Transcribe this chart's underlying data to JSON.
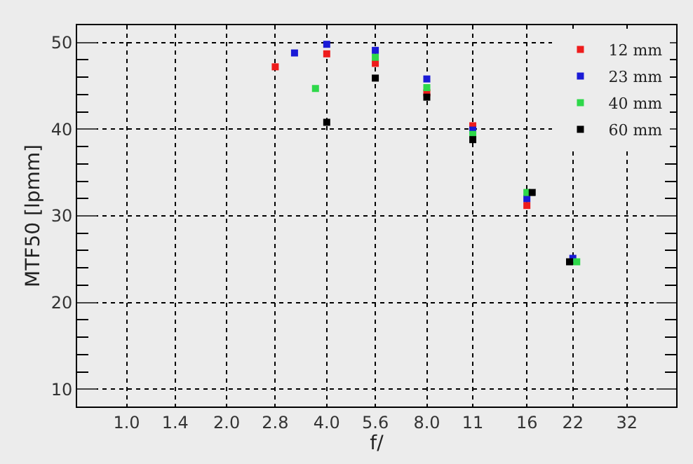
{
  "chart_data": {
    "type": "scatter",
    "xlabel": "f/",
    "ylabel": "MTF50 [lpmm]",
    "log": "x",
    "marker": "square",
    "grid": true,
    "legend": "top right",
    "xlim": [
      0.71,
      45
    ],
    "ylim": [
      8,
      52
    ],
    "xticks": [
      {
        "value": 1.0,
        "label": "1.0"
      },
      {
        "value": 1.4,
        "label": "1.4"
      },
      {
        "value": 2.0,
        "label": "2.0"
      },
      {
        "value": 2.8,
        "label": "2.8"
      },
      {
        "value": 4.0,
        "label": "4.0"
      },
      {
        "value": 5.6,
        "label": "5.6"
      },
      {
        "value": 8.0,
        "label": "8.0"
      },
      {
        "value": 11,
        "label": "11"
      },
      {
        "value": 16,
        "label": "16"
      },
      {
        "value": 22,
        "label": "22"
      },
      {
        "value": 32,
        "label": "32"
      }
    ],
    "yticks": [
      10,
      20,
      30,
      40,
      50
    ],
    "series": [
      {
        "name": "12 mm",
        "color": "#ee1c1c",
        "x": [
          2.8,
          4.0,
          5.6,
          8.0,
          11,
          16
        ],
        "values": [
          47.2,
          48.7,
          47.6,
          44.2,
          40.4,
          31.2
        ]
      },
      {
        "name": "23 mm",
        "color": "#1a1ad6",
        "x": [
          3.2,
          4.0,
          5.6,
          8.0,
          11,
          16,
          22
        ],
        "values": [
          48.8,
          49.8,
          49.1,
          45.8,
          39.9,
          32.0,
          25.1
        ]
      },
      {
        "name": "40 mm",
        "color": "#2ed84a",
        "x": [
          3.7,
          5.6,
          8.0,
          11,
          16,
          22.6
        ],
        "values": [
          44.7,
          48.3,
          44.8,
          39.4,
          32.7,
          24.7
        ]
      },
      {
        "name": "60 mm",
        "color": "#000000",
        "x": [
          4.0,
          5.6,
          8.0,
          11,
          16.6,
          21.5
        ],
        "values": [
          40.8,
          45.9,
          43.7,
          38.8,
          32.7,
          24.7
        ]
      }
    ]
  }
}
